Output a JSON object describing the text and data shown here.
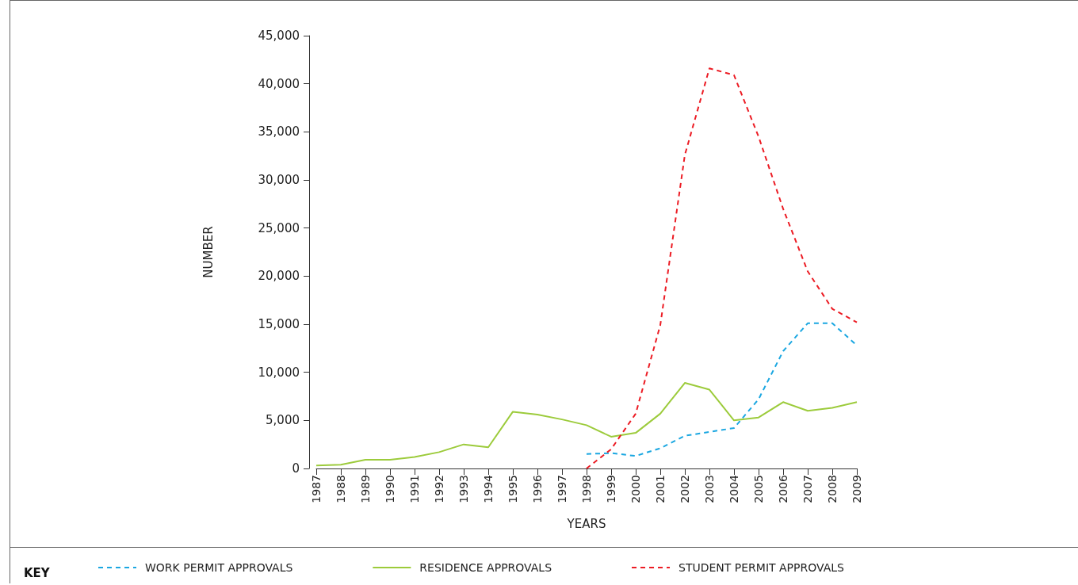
{
  "chart_data": {
    "type": "line",
    "xlabel": "YEARS",
    "ylabel": "NUMBER",
    "legend_title": "KEY",
    "categories": [
      "1987",
      "1988",
      "1989",
      "1990",
      "1991",
      "1992",
      "1993",
      "1994",
      "1995",
      "1996",
      "1997",
      "1998",
      "1999",
      "2000",
      "2001",
      "2002",
      "2003",
      "2004",
      "2005",
      "2006",
      "2007",
      "2008",
      "2009"
    ],
    "series": [
      {
        "name": "WORK PERMIT APPROVALS",
        "color": "#1ba7e1",
        "line_style": "dashed",
        "values": [
          null,
          null,
          null,
          null,
          null,
          null,
          null,
          null,
          null,
          null,
          null,
          1500,
          1600,
          1300,
          2100,
          3400,
          3800,
          4200,
          7200,
          12200,
          15100,
          15100,
          12800
        ]
      },
      {
        "name": "RESIDENCE APPROVALS",
        "color": "#9ccb3b",
        "line_style": "solid",
        "values": [
          300,
          400,
          900,
          900,
          1200,
          1700,
          2500,
          2200,
          5900,
          5600,
          5100,
          4500,
          3300,
          3700,
          5700,
          8900,
          8200,
          5000,
          5300,
          6900,
          6000,
          6300,
          6900
        ]
      },
      {
        "name": "STUDENT PERMIT APPROVALS",
        "color": "#ec1c24",
        "line_style": "dashed",
        "values": [
          null,
          null,
          null,
          null,
          null,
          null,
          null,
          null,
          null,
          null,
          null,
          0,
          2000,
          5700,
          14900,
          32600,
          41600,
          40900,
          34500,
          27000,
          20500,
          16600,
          15200
        ]
      }
    ],
    "ylim": [
      0,
      45000
    ],
    "yticks": [
      {
        "value": 0,
        "label": "0"
      },
      {
        "value": 5000,
        "label": "5,000"
      },
      {
        "value": 10000,
        "label": "10,000"
      },
      {
        "value": 15000,
        "label": "15,000"
      },
      {
        "value": 20000,
        "label": "20,000"
      },
      {
        "value": 25000,
        "label": "25,000"
      },
      {
        "value": 30000,
        "label": "30,000"
      },
      {
        "value": 35000,
        "label": "35,000"
      },
      {
        "value": 40000,
        "label": "40,000"
      },
      {
        "value": 45000,
        "label": "45,000"
      }
    ],
    "grid": false,
    "marker": "none",
    "legend": "bottom"
  }
}
